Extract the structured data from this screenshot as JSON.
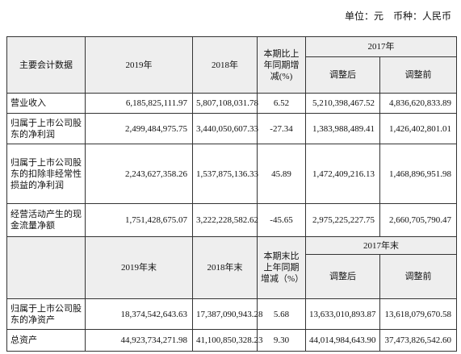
{
  "unit_note": "单位：元　币种：人民币",
  "table": {
    "header_1": {
      "cells": [
        "主要会计数据",
        "2019年",
        "2018年",
        "本期比上年同期增减(%)"
      ],
      "group": "2017年",
      "sub": [
        "调整后",
        "调整前"
      ]
    },
    "rows_1": [
      [
        "营业收入",
        "6,185,825,111.97",
        "5,807,108,031.78",
        "6.52",
        "5,210,398,467.52",
        "4,836,620,833.89"
      ],
      [
        "归属于上市公司股东的净利润",
        "2,499,484,975.75",
        "3,440,050,607.33",
        "-27.34",
        "1,383,988,489.41",
        "1,426,402,801.01"
      ],
      [
        "归属于上市公司股东的扣除非经常性损益的净利润",
        "2,243,627,358.26",
        "1,537,875,136.33",
        "45.89",
        "1,472,409,216.13",
        "1,468,896,951.98"
      ],
      [
        "经营活动产生的现金流量净额",
        "1,751,428,675.07",
        "3,222,228,582.62",
        "-45.65",
        "2,975,225,227.75",
        "2,660,705,790.47"
      ]
    ],
    "header_2": {
      "cells": [
        "2019年末",
        "2018年末",
        "本期末比上年同期增减（%）"
      ],
      "group": "2017年末",
      "sub": [
        "调整后",
        "调整前"
      ]
    },
    "rows_2": [
      [
        "归属于上市公司股东的净资产",
        "18,374,542,643.63",
        "17,387,090,943.28",
        "5.68",
        "13,633,010,893.87",
        "13,618,079,670.58"
      ],
      [
        "总资产",
        "44,923,734,271.98",
        "41,100,850,328.23",
        "9.30",
        "44,014,984,643.90",
        "37,473,826,542.60"
      ]
    ]
  }
}
